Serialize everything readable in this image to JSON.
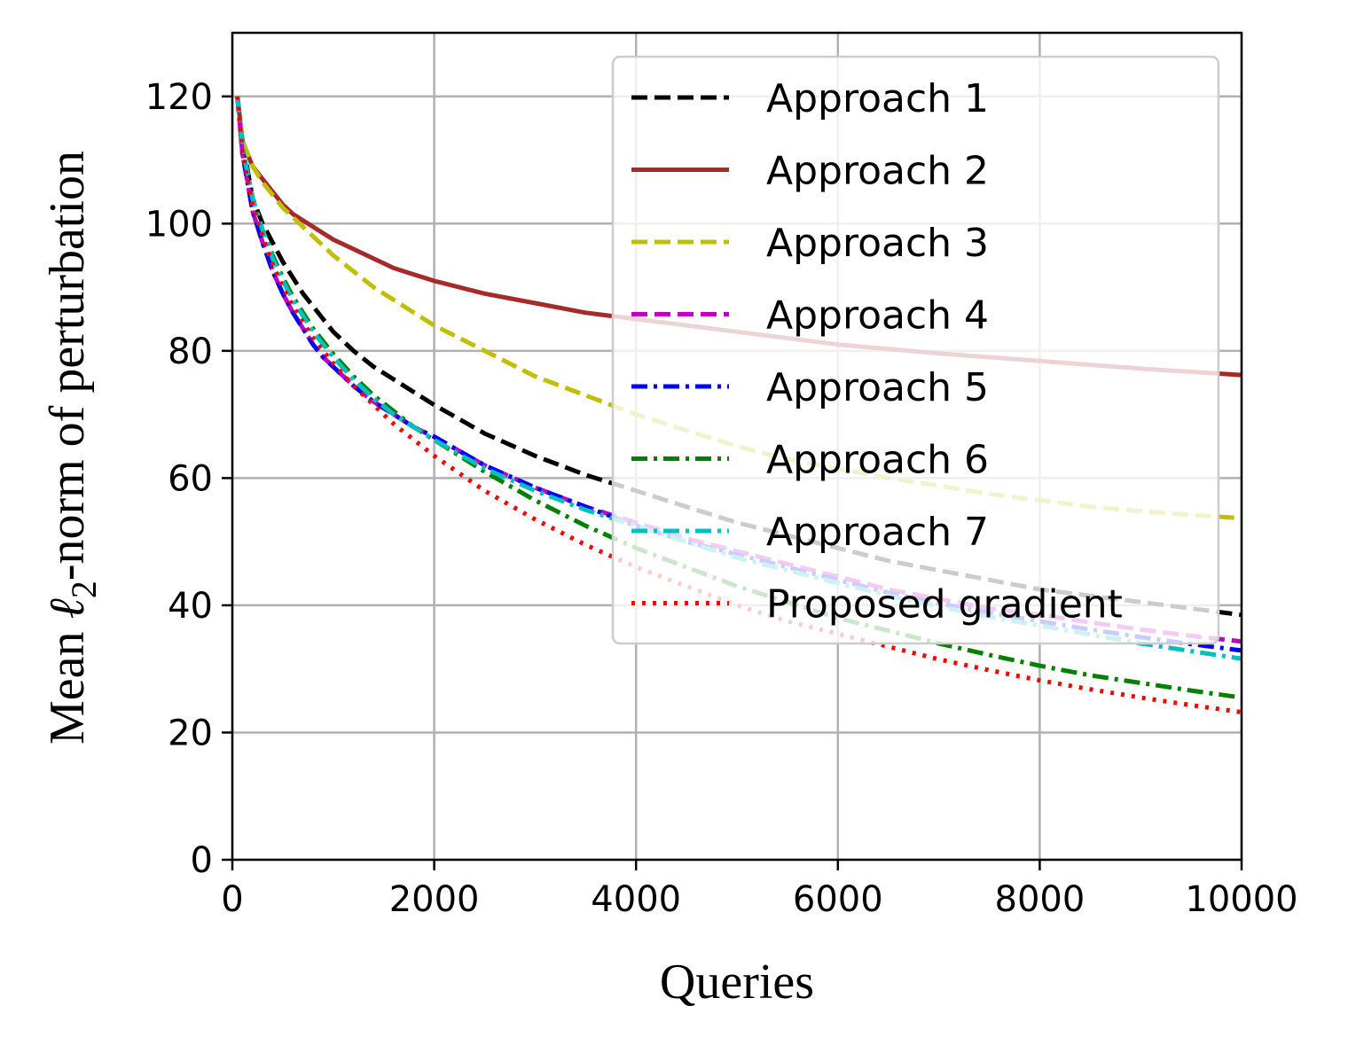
{
  "chart_data": {
    "type": "line",
    "title": "",
    "xlabel": "Queries",
    "ylabel": "Mean ℓ2-norm of perturbation",
    "ylabel_prefix": "Mean ",
    "ylabel_symbol": "ℓ",
    "ylabel_sub": "2",
    "ylabel_suffix": "-norm of perturbation",
    "xlim": [
      0,
      10000
    ],
    "ylim": [
      0,
      130
    ],
    "xticks": [
      0,
      2000,
      4000,
      6000,
      8000,
      10000
    ],
    "yticks": [
      0,
      20,
      40,
      60,
      80,
      100,
      120
    ],
    "grid": true,
    "legend_position": "top-right",
    "x": [
      50,
      100,
      200,
      300,
      400,
      500,
      600,
      700,
      800,
      900,
      1000,
      1200,
      1400,
      1600,
      1800,
      2000,
      2500,
      3000,
      3500,
      4000,
      4500,
      5000,
      5500,
      6000,
      6500,
      7000,
      7500,
      8000,
      8500,
      9000,
      9500,
      10000
    ],
    "series": [
      {
        "name": "Approach 1",
        "color": "#000000",
        "dash": "dashed",
        "values": [
          120,
          113,
          104,
          100,
          97,
          94,
          91.5,
          89,
          87,
          85,
          83,
          80,
          77.5,
          75.5,
          73.5,
          71.5,
          67,
          63.5,
          60.5,
          58,
          55.5,
          53,
          51,
          49,
          47,
          45.5,
          44,
          42.5,
          41.5,
          40.5,
          39.5,
          38.5
        ]
      },
      {
        "name": "Approach 2",
        "color": "#a52a2a",
        "dash": "solid",
        "values": [
          120,
          113,
          109,
          107,
          105,
          103,
          101.5,
          100.5,
          99.5,
          98.5,
          97.5,
          96,
          94.5,
          93,
          92,
          91,
          89,
          87.5,
          86,
          85,
          84,
          83,
          82,
          81,
          80.3,
          79.6,
          79,
          78.4,
          77.8,
          77.2,
          76.7,
          76.2
        ]
      },
      {
        "name": "Approach 3",
        "color": "#bfbf00",
        "dash": "dashed",
        "values": [
          120,
          113,
          109,
          106.5,
          104.5,
          102.5,
          101,
          99.5,
          98,
          96.5,
          95,
          92.5,
          90,
          88,
          86,
          84,
          80,
          76,
          73,
          70,
          67.5,
          65,
          63,
          61.5,
          60,
          58.8,
          57.5,
          56.5,
          55.5,
          54.8,
          54.2,
          53.7
        ]
      },
      {
        "name": "Approach 4",
        "color": "#bf00bf",
        "dash": "dashed",
        "values": [
          120,
          111,
          102,
          97,
          92.5,
          89,
          86,
          83.5,
          81,
          79,
          77.5,
          74.5,
          72,
          70,
          68,
          66.5,
          62,
          58.5,
          55.5,
          53,
          50.5,
          48.5,
          46.5,
          44.5,
          42.5,
          41,
          39.5,
          38.5,
          37.3,
          36.2,
          35.2,
          34.3
        ]
      },
      {
        "name": "Approach 5",
        "color": "#0000ff",
        "dash": "dashdot",
        "values": [
          120,
          111,
          102,
          97,
          92.5,
          89,
          86,
          83.5,
          81,
          79,
          77.5,
          74.5,
          72,
          70,
          68,
          66.5,
          62,
          58.5,
          55.5,
          52.5,
          50,
          48,
          46,
          44,
          42,
          40.3,
          38.8,
          37.5,
          36.2,
          35,
          33.9,
          32.9
        ]
      },
      {
        "name": "Approach 6",
        "color": "#008000",
        "dash": "dashdot",
        "values": [
          120,
          112,
          104,
          99,
          95,
          91.5,
          88.5,
          86,
          83.5,
          81.5,
          79.5,
          76,
          73,
          70.5,
          68,
          66,
          61,
          56.5,
          52.5,
          49,
          46,
          43,
          40.5,
          38,
          36,
          34,
          32.2,
          30.5,
          29,
          27.8,
          26.6,
          25.5
        ]
      },
      {
        "name": "Approach 7",
        "color": "#00bfbf",
        "dash": "dashdot",
        "values": [
          120,
          112,
          104,
          99,
          94.5,
          91,
          88,
          85.5,
          83,
          81,
          79,
          75.5,
          72.5,
          70,
          68,
          66,
          61.5,
          58,
          55,
          52.5,
          50,
          47.5,
          45.5,
          43.5,
          41.5,
          39.8,
          38.2,
          36.8,
          35.4,
          34,
          32.8,
          31.6
        ]
      },
      {
        "name": "Proposed gradient",
        "color": "#ff0000",
        "dash": "dotted",
        "values": [
          120,
          111,
          103,
          98,
          93.5,
          90,
          87,
          84.5,
          82,
          80,
          78,
          74.5,
          71.5,
          68.5,
          66,
          63.5,
          58,
          53.5,
          49.5,
          46,
          43,
          40,
          37.5,
          35.5,
          33.5,
          31.5,
          29.8,
          28.2,
          26.8,
          25.5,
          24.3,
          23.2
        ]
      }
    ]
  }
}
